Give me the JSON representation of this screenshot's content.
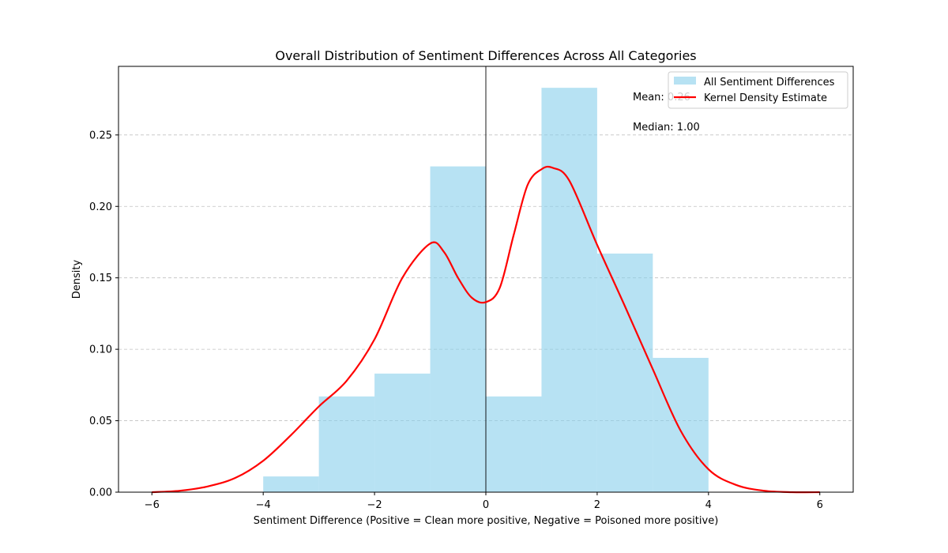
{
  "chart_data": {
    "type": "histogram",
    "title": "Overall Distribution of Sentiment Differences Across All Categories",
    "xlabel": "Sentiment Difference (Positive = Clean more positive, Negative = Poisoned more positive)",
    "ylabel": "Density",
    "xlim": [
      -6.6,
      6.6
    ],
    "ylim": [
      0,
      0.298
    ],
    "xticks": [
      -6,
      -4,
      -2,
      0,
      2,
      4,
      6
    ],
    "xtick_labels": [
      "−6",
      "−4",
      "−2",
      "0",
      "2",
      "4",
      "6"
    ],
    "yticks": [
      0.0,
      0.05,
      0.1,
      0.15,
      0.2,
      0.25
    ],
    "ytick_labels": [
      "0.00",
      "0.05",
      "0.10",
      "0.15",
      "0.20",
      "0.25"
    ],
    "grid": "y-dashed",
    "reference_line_x": 0,
    "bins": [
      {
        "x0": -4,
        "x1": -3,
        "density": 0.011
      },
      {
        "x0": -3,
        "x1": -2,
        "density": 0.067
      },
      {
        "x0": -2,
        "x1": -1,
        "density": 0.083
      },
      {
        "x0": -1,
        "x1": 0,
        "density": 0.228
      },
      {
        "x0": 0,
        "x1": 1,
        "density": 0.067
      },
      {
        "x0": 1,
        "x1": 2,
        "density": 0.283
      },
      {
        "x0": 2,
        "x1": 3,
        "density": 0.167
      },
      {
        "x0": 3,
        "x1": 4,
        "density": 0.094
      }
    ],
    "kde": {
      "x": [
        -6,
        -5.5,
        -5,
        -4.5,
        -4,
        -3.5,
        -3,
        -2.5,
        -2,
        -1.5,
        -1,
        -0.75,
        -0.5,
        -0.25,
        0,
        0.25,
        0.5,
        0.75,
        1,
        1.2,
        1.5,
        2,
        2.5,
        3,
        3.5,
        4,
        4.5,
        5,
        5.5,
        6
      ],
      "y": [
        0.0,
        0.001,
        0.004,
        0.01,
        0.022,
        0.04,
        0.06,
        0.078,
        0.107,
        0.15,
        0.174,
        0.168,
        0.15,
        0.136,
        0.133,
        0.143,
        0.18,
        0.215,
        0.226,
        0.227,
        0.218,
        0.173,
        0.13,
        0.086,
        0.043,
        0.016,
        0.005,
        0.001,
        0.0,
        0.0
      ]
    },
    "legend": {
      "placement": "top-right",
      "entries": [
        {
          "label": "All Sentiment Differences",
          "color": "#87ceeb"
        },
        {
          "label": "Kernel Density Estimate",
          "color": "#ff0000"
        }
      ]
    },
    "annotations": {
      "mean": "Mean: 0.26",
      "median": "Median: 1.00"
    },
    "colors": {
      "bar": "#87ceeb",
      "kde": "#ff0000",
      "zero_line": "#000000",
      "grid": "#b0b0b0"
    }
  }
}
